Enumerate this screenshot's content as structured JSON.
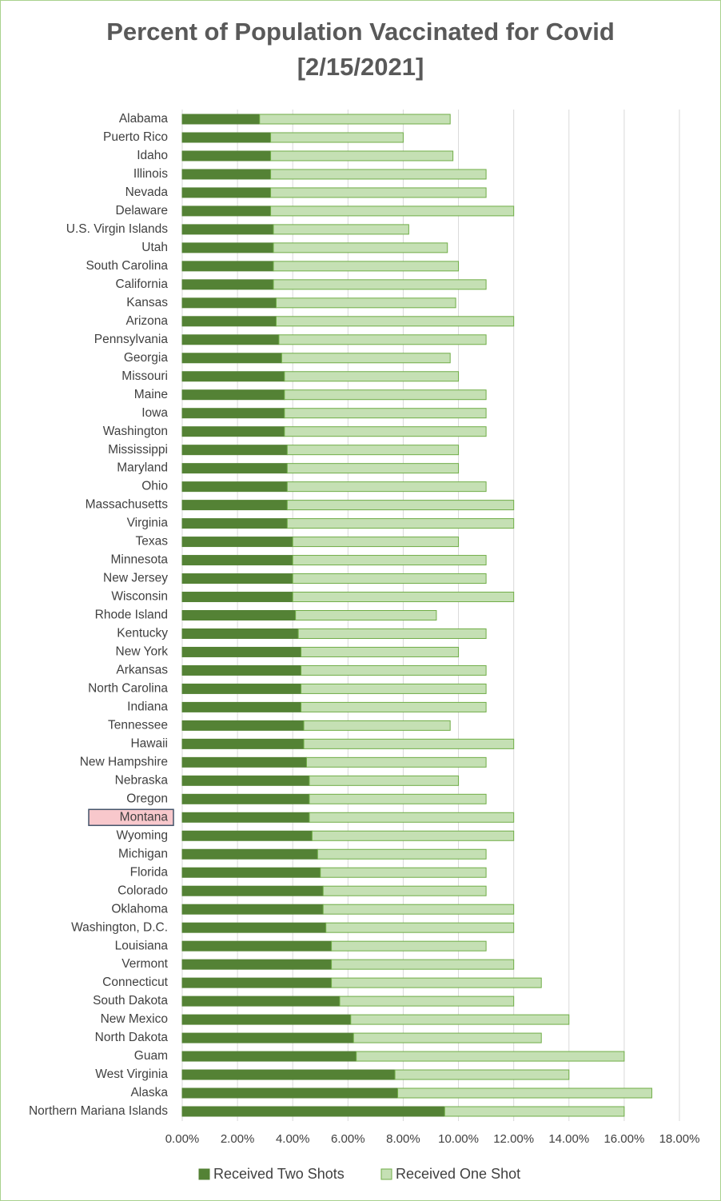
{
  "chart_data": {
    "type": "stacked-barh",
    "title": "Percent of Population Vaccinated for Covid",
    "subtitle": "[2/15/2021]",
    "categories": [
      "Alabama",
      "Puerto Rico",
      "Idaho",
      "Illinois",
      "Nevada",
      "Delaware",
      "U.S. Virgin Islands",
      "Utah",
      "South Carolina",
      "California",
      "Kansas",
      "Arizona",
      "Pennsylvania",
      "Georgia",
      "Missouri",
      "Maine",
      "Iowa",
      "Washington",
      "Mississippi",
      "Maryland",
      "Ohio",
      "Massachusetts",
      "Virginia",
      "Texas",
      "Minnesota",
      "New Jersey",
      "Wisconsin",
      "Rhode Island",
      "Kentucky",
      "New York",
      "Arkansas",
      "North Carolina",
      "Indiana",
      "Tennessee",
      "Hawaii",
      "New Hampshire",
      "Nebraska",
      "Oregon",
      "Montana",
      "Wyoming",
      "Michigan",
      "Florida",
      "Colorado",
      "Oklahoma",
      "Washington, D.C.",
      "Louisiana",
      "Vermont",
      "Connecticut",
      "South Dakota",
      "New Mexico",
      "North Dakota",
      "Guam",
      "West Virginia",
      "Alaska",
      "Northern Mariana Islands"
    ],
    "series": [
      {
        "name": "Received Two Shots",
        "color": "#548235",
        "values": [
          2.8,
          3.2,
          3.2,
          3.2,
          3.2,
          3.2,
          3.3,
          3.3,
          3.3,
          3.3,
          3.4,
          3.4,
          3.5,
          3.6,
          3.7,
          3.7,
          3.7,
          3.7,
          3.8,
          3.8,
          3.8,
          3.8,
          3.8,
          4.0,
          4.0,
          4.0,
          4.0,
          4.1,
          4.2,
          4.3,
          4.3,
          4.3,
          4.3,
          4.4,
          4.4,
          4.5,
          4.6,
          4.6,
          4.6,
          4.7,
          4.9,
          5.0,
          5.1,
          5.1,
          5.2,
          5.4,
          5.4,
          5.4,
          5.7,
          6.1,
          6.2,
          6.3,
          7.7,
          7.8,
          9.5
        ]
      },
      {
        "name": "Received One Shot",
        "color": "#c5e0b4",
        "values": [
          6.9,
          4.8,
          6.6,
          7.8,
          7.8,
          8.8,
          4.9,
          6.3,
          6.7,
          7.7,
          6.5,
          8.6,
          7.5,
          6.1,
          6.3,
          7.3,
          7.3,
          7.3,
          6.2,
          6.2,
          7.2,
          8.2,
          8.2,
          6.0,
          7.0,
          7.0,
          8.0,
          5.1,
          6.8,
          5.7,
          6.7,
          6.7,
          6.7,
          5.3,
          7.6,
          6.5,
          5.4,
          6.4,
          7.4,
          7.3,
          6.1,
          6.0,
          5.9,
          6.9,
          6.8,
          5.6,
          6.6,
          7.6,
          6.3,
          7.9,
          6.8,
          9.7,
          6.3,
          9.2,
          6.5
        ]
      }
    ],
    "xlim": [
      0,
      18
    ],
    "xticks": [
      {
        "value": 0,
        "label": "0.00%"
      },
      {
        "value": 2,
        "label": "2.00%"
      },
      {
        "value": 4,
        "label": "4.00%"
      },
      {
        "value": 6,
        "label": "6.00%"
      },
      {
        "value": 8,
        "label": "8.00%"
      },
      {
        "value": 10,
        "label": "10.00%"
      },
      {
        "value": 12,
        "label": "12.00%"
      },
      {
        "value": 14,
        "label": "14.00%"
      },
      {
        "value": 16,
        "label": "16.00%"
      },
      {
        "value": 18,
        "label": "18.00%"
      }
    ],
    "grid": true,
    "legend": "bottom",
    "highlight": 38
  }
}
